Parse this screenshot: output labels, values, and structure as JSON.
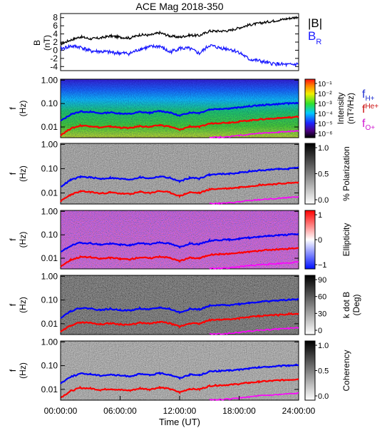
{
  "title": "ACE Mag 2018-350",
  "xlabel": "Time (UT)",
  "colors": {
    "btotal": "#000000",
    "br": "#1a1aff",
    "fh": "#0000ff",
    "fhe": "#ff0000",
    "fo": "#ff00ff"
  },
  "panel1": {
    "ylabel": "B",
    "yunit": "(nT)",
    "legend": {
      "btotal": "|B|",
      "br": "B",
      "br_sub": "R"
    }
  },
  "freq_axis": {
    "ylabel": "f",
    "yunit": "(Hz)",
    "ticks": [
      {
        "label": "1.00",
        "value": 1.0
      },
      {
        "label": "0.10",
        "value": 0.1
      },
      {
        "label": "0.01",
        "value": 0.01
      }
    ]
  },
  "gyro_legend": {
    "fh": "f",
    "fh_sub": "H+",
    "fhe": "f",
    "fhe_sub": "He+",
    "fo": "f",
    "fo_sub": "O+"
  },
  "panels": [
    {
      "key": "intensity",
      "cb_title1": "Intensity",
      "cb_title2": "(nT²/Hz)",
      "cb_ticks": [
        "10⁻¹",
        "10⁻²",
        "10⁻³",
        "10⁻⁴",
        "10⁻⁵",
        "10⁻⁶"
      ]
    },
    {
      "key": "polarization",
      "cb_title1": "% Polarization",
      "cb_title2": "",
      "cb_ticks": [
        "1.0",
        "0.5",
        "0.0"
      ]
    },
    {
      "key": "ellipticity",
      "cb_title1": "Ellipticity",
      "cb_title2": "",
      "cb_ticks": [
        "1",
        "0",
        "−1"
      ]
    },
    {
      "key": "kdotb",
      "cb_title1": "k dot B",
      "cb_title2": "(Deg)",
      "cb_ticks": [
        "90",
        "60",
        "30",
        "0"
      ]
    },
    {
      "key": "coherency",
      "cb_title1": "Coherency",
      "cb_title2": "",
      "cb_ticks": [
        "1.0",
        "0.5",
        "0.0"
      ]
    }
  ],
  "chart_data": {
    "type": "line",
    "x_tick_labels": [
      "00:00:00",
      "06:00:00",
      "12:00:00",
      "18:00:00",
      "24:00:00"
    ],
    "x_range_hours": [
      0,
      24
    ],
    "btotal": {
      "ylim": [
        -5,
        9
      ],
      "y_ticks": [
        8,
        6,
        4,
        2,
        0,
        -2,
        -4
      ],
      "series": [
        {
          "name": "|B|",
          "x": [
            0,
            1,
            2,
            3,
            4,
            5,
            6,
            7,
            8,
            9,
            10,
            11,
            12,
            13,
            14,
            15,
            16,
            17,
            18,
            19,
            20,
            21,
            22,
            23,
            24
          ],
          "y": [
            1.5,
            2.5,
            3.3,
            2.8,
            3.0,
            3.5,
            3.2,
            3.0,
            3.8,
            3.7,
            4.3,
            3.5,
            3.2,
            3.7,
            3.6,
            4.7,
            4.7,
            4.8,
            5.5,
            6.2,
            6.6,
            7.0,
            7.4,
            7.8,
            8.2
          ]
        },
        {
          "name": "B_R",
          "x": [
            0,
            1,
            2,
            3,
            4,
            5,
            6,
            7,
            8,
            9,
            10,
            11,
            12,
            13,
            14,
            15,
            16,
            17,
            18,
            19,
            20,
            21,
            22,
            23,
            24
          ],
          "y": [
            0.3,
            1.0,
            0.8,
            -0.2,
            -0.3,
            -0.5,
            -0.7,
            -0.8,
            0.3,
            0.8,
            1.0,
            -0.5,
            0.5,
            0.4,
            -0.8,
            1.2,
            0.6,
            0.3,
            -0.5,
            -2.2,
            -2.6,
            -3.2,
            -3.4,
            -3.6,
            -3.4
          ]
        }
      ]
    },
    "gyrofrequency": {
      "ylim_hz": [
        0.0035,
        1.1
      ],
      "y_scale": "log",
      "x": [
        0,
        1,
        2,
        3,
        4,
        5,
        6,
        7,
        8,
        9,
        10,
        11,
        12,
        13,
        14,
        15,
        16,
        17,
        18,
        19,
        20,
        21,
        22,
        23,
        24
      ],
      "series": [
        {
          "name": "H+",
          "y": [
            0.018,
            0.034,
            0.046,
            0.044,
            0.038,
            0.042,
            0.038,
            0.036,
            0.044,
            0.04,
            0.048,
            0.042,
            0.03,
            0.042,
            0.04,
            0.056,
            0.06,
            0.062,
            0.068,
            0.076,
            0.084,
            0.09,
            0.096,
            0.102,
            0.108
          ]
        },
        {
          "name": "He+",
          "y": [
            0.0045,
            0.0085,
            0.0115,
            0.011,
            0.0095,
            0.0105,
            0.0095,
            0.009,
            0.011,
            0.01,
            0.012,
            0.0105,
            0.0075,
            0.0105,
            0.01,
            0.014,
            0.015,
            0.0155,
            0.017,
            0.019,
            0.021,
            0.0225,
            0.024,
            0.0255,
            0.027
          ]
        },
        {
          "name": "O+",
          "y": [
            null,
            null,
            null,
            null,
            null,
            null,
            null,
            null,
            null,
            null,
            null,
            null,
            null,
            null,
            null,
            0.0037,
            0.0037,
            0.0039,
            0.0043,
            0.0048,
            0.0053,
            0.0056,
            0.006,
            0.0064,
            0.0068
          ]
        }
      ]
    }
  }
}
